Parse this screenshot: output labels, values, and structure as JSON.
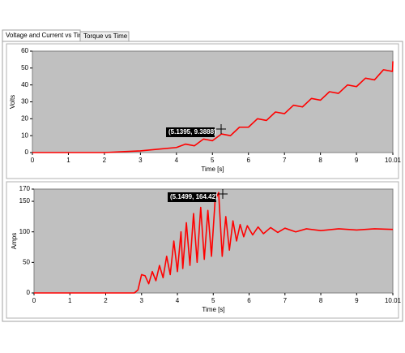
{
  "tabs": [
    "Voltage and Current vs Time",
    "Torque vs Time"
  ],
  "chart_data": [
    {
      "type": "line",
      "xlabel": "Time [s]",
      "ylabel": "Volts",
      "annotation": "(5.1395, 9.3888)",
      "xlim": [
        0,
        10.01
      ],
      "xticks": [
        0,
        1,
        2,
        3,
        4,
        5,
        6,
        7,
        8,
        9,
        10.01
      ],
      "ylim": [
        0,
        60
      ],
      "yticks": [
        0,
        10,
        20,
        30,
        40,
        50,
        60
      ],
      "x": [
        0,
        1,
        2,
        2.5,
        3,
        3.5,
        4,
        4.25,
        4.5,
        4.75,
        5,
        5.25,
        5.5,
        5.75,
        6,
        6.25,
        6.5,
        6.75,
        7,
        7.25,
        7.5,
        7.75,
        8,
        8.25,
        8.5,
        8.75,
        9,
        9.25,
        9.5,
        9.75,
        10,
        10.01
      ],
      "series": [
        {
          "color": "#ff0000",
          "values": [
            0,
            0,
            0,
            0.5,
            1,
            2,
            3,
            5,
            4,
            8,
            7,
            11,
            10,
            15,
            15,
            20,
            19,
            24,
            23,
            28,
            27,
            32,
            31,
            36,
            35,
            40,
            39,
            44,
            43,
            49,
            48,
            54
          ]
        }
      ]
    },
    {
      "type": "line",
      "xlabel": "Time [s]",
      "ylabel": "Amps",
      "annotation": "(5.1499, 164.42)",
      "xlim": [
        0,
        10.01
      ],
      "xticks": [
        0,
        1,
        2,
        3,
        4,
        5,
        6,
        7,
        8,
        9,
        10.01
      ],
      "ylim": [
        0,
        170
      ],
      "yticks": [
        0,
        50,
        100,
        150,
        170
      ],
      "x": [
        0,
        2.8,
        2.9,
        3.0,
        3.1,
        3.2,
        3.3,
        3.4,
        3.5,
        3.6,
        3.7,
        3.8,
        3.9,
        4.0,
        4.1,
        4.15,
        4.25,
        4.35,
        4.45,
        4.55,
        4.65,
        4.75,
        4.85,
        4.95,
        5.05,
        5.15,
        5.25,
        5.35,
        5.45,
        5.55,
        5.65,
        5.75,
        5.85,
        5.95,
        6.1,
        6.25,
        6.4,
        6.6,
        6.8,
        7.0,
        7.3,
        7.6,
        8,
        8.5,
        9,
        9.5,
        10,
        10.01
      ],
      "series": [
        {
          "color": "#ff0000",
          "values": [
            0,
            0,
            5,
            30,
            28,
            15,
            35,
            20,
            45,
            25,
            60,
            30,
            85,
            35,
            100,
            40,
            115,
            45,
            130,
            50,
            140,
            55,
            135,
            60,
            150,
            164.42,
            60,
            125,
            70,
            118,
            85,
            112,
            92,
            110,
            95,
            108,
            97,
            107,
            99,
            106,
            100,
            105,
            102,
            105,
            103,
            105,
            104,
            104
          ]
        }
      ]
    }
  ]
}
